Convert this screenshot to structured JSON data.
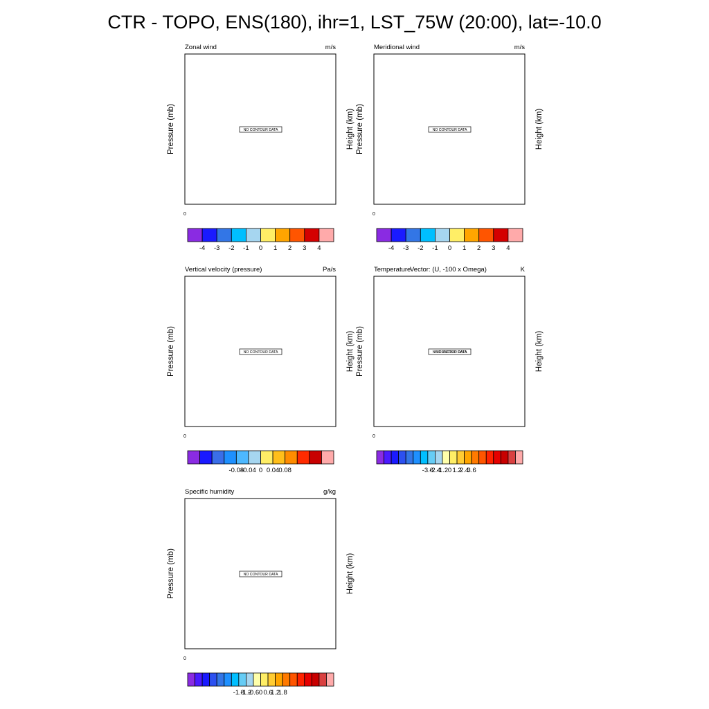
{
  "figure_title": "CTR - TOPO, ENS(180), ihr=1, LST_75W (20:00), lat=-10.0",
  "chart_data": [
    {
      "type": "heatmap",
      "title": "Zonal wind",
      "units": "m/s",
      "ylabel_left": "Pressure (mb)",
      "ylabel_right": "Height (km)",
      "x_tick_labels": [
        "0"
      ],
      "message": "NO CONTOUR DATA",
      "colorbar": {
        "colors": [
          "#8a2be2",
          "#1a1aff",
          "#3376e6",
          "#00bfff",
          "#a6d6f0",
          "#ffee66",
          "#ffa500",
          "#ff5500",
          "#d40000",
          "#ffaaaa"
        ],
        "tick_labels": [
          "-4",
          "-3",
          "-2",
          "-1",
          "0",
          "1",
          "2",
          "3",
          "4"
        ]
      }
    },
    {
      "type": "heatmap",
      "title": "Meridional wind",
      "units": "m/s",
      "ylabel_left": "Pressure (mb)",
      "ylabel_right": "Height (km)",
      "x_tick_labels": [
        "0"
      ],
      "message": "NO CONTOUR DATA",
      "colorbar": {
        "colors": [
          "#8a2be2",
          "#1a1aff",
          "#3376e6",
          "#00bfff",
          "#a6d6f0",
          "#ffee66",
          "#ffa500",
          "#ff5500",
          "#d40000",
          "#ffaaaa"
        ],
        "tick_labels": [
          "-4",
          "-3",
          "-2",
          "-1",
          "0",
          "1",
          "2",
          "3",
          "4"
        ]
      }
    },
    {
      "type": "heatmap",
      "title": "Vertical velocity (pressure)",
      "units": "Pa/s",
      "ylabel_left": "Pressure (mb)",
      "ylabel_right": "Height (km)",
      "x_tick_labels": [
        "0"
      ],
      "message": "NO CONTOUR DATA",
      "colorbar": {
        "colors": [
          "#8a2be2",
          "#1a1aff",
          "#3a6ee8",
          "#1e90ff",
          "#4db8ff",
          "#a6d6f0",
          "#ffee66",
          "#ffbf1a",
          "#ff8c00",
          "#ff2b00",
          "#c80000",
          "#ffaaaa"
        ],
        "tick_labels": [
          "-0.08",
          "-0.04",
          "0",
          "0.04",
          "0.08"
        ]
      }
    },
    {
      "type": "heatmap",
      "title": "Temperature",
      "title_overlay": "Vector: (U, -100 x Omega)",
      "units": "K",
      "ylabel_left": "Pressure (mb)",
      "ylabel_right": "Height (km)",
      "x_tick_labels": [
        "0"
      ],
      "message": "NO CONTOUR DATA",
      "message_overlay": "NO VECTOR DATA",
      "colorbar": {
        "colors": [
          "#8a2be2",
          "#4b1aff",
          "#1a1aff",
          "#2c50f0",
          "#3376e6",
          "#1e90ff",
          "#00bfff",
          "#66ccf5",
          "#a6d6f0",
          "#ffffaa",
          "#ffee66",
          "#ffcc33",
          "#ffa500",
          "#ff7a00",
          "#ff5500",
          "#ff2200",
          "#e60000",
          "#c80000",
          "#d94040",
          "#ffaaaa"
        ],
        "tick_labels": [
          "-3.6",
          "-2.4",
          "-1.2",
          "0",
          "1.2",
          "2.4",
          "3.6"
        ]
      }
    },
    {
      "type": "heatmap",
      "title": "Specific humidity",
      "units": "g/kg",
      "ylabel_left": "Pressure (mb)",
      "ylabel_right": "Height (km)",
      "x_tick_labels": [
        "0"
      ],
      "message": "NO CONTOUR DATA",
      "colorbar": {
        "colors": [
          "#8a2be2",
          "#4b1aff",
          "#1a1aff",
          "#2c50f0",
          "#3376e6",
          "#1e90ff",
          "#00bfff",
          "#66ccf5",
          "#a6d6f0",
          "#ffffaa",
          "#ffee66",
          "#ffcc33",
          "#ffa500",
          "#ff7a00",
          "#ff5500",
          "#ff2200",
          "#e60000",
          "#c80000",
          "#d94040",
          "#ffaaaa"
        ],
        "tick_labels": [
          "-1.8",
          "-1.2",
          "-0.6",
          "0",
          "0.6",
          "1.2",
          "1.8"
        ]
      }
    }
  ]
}
